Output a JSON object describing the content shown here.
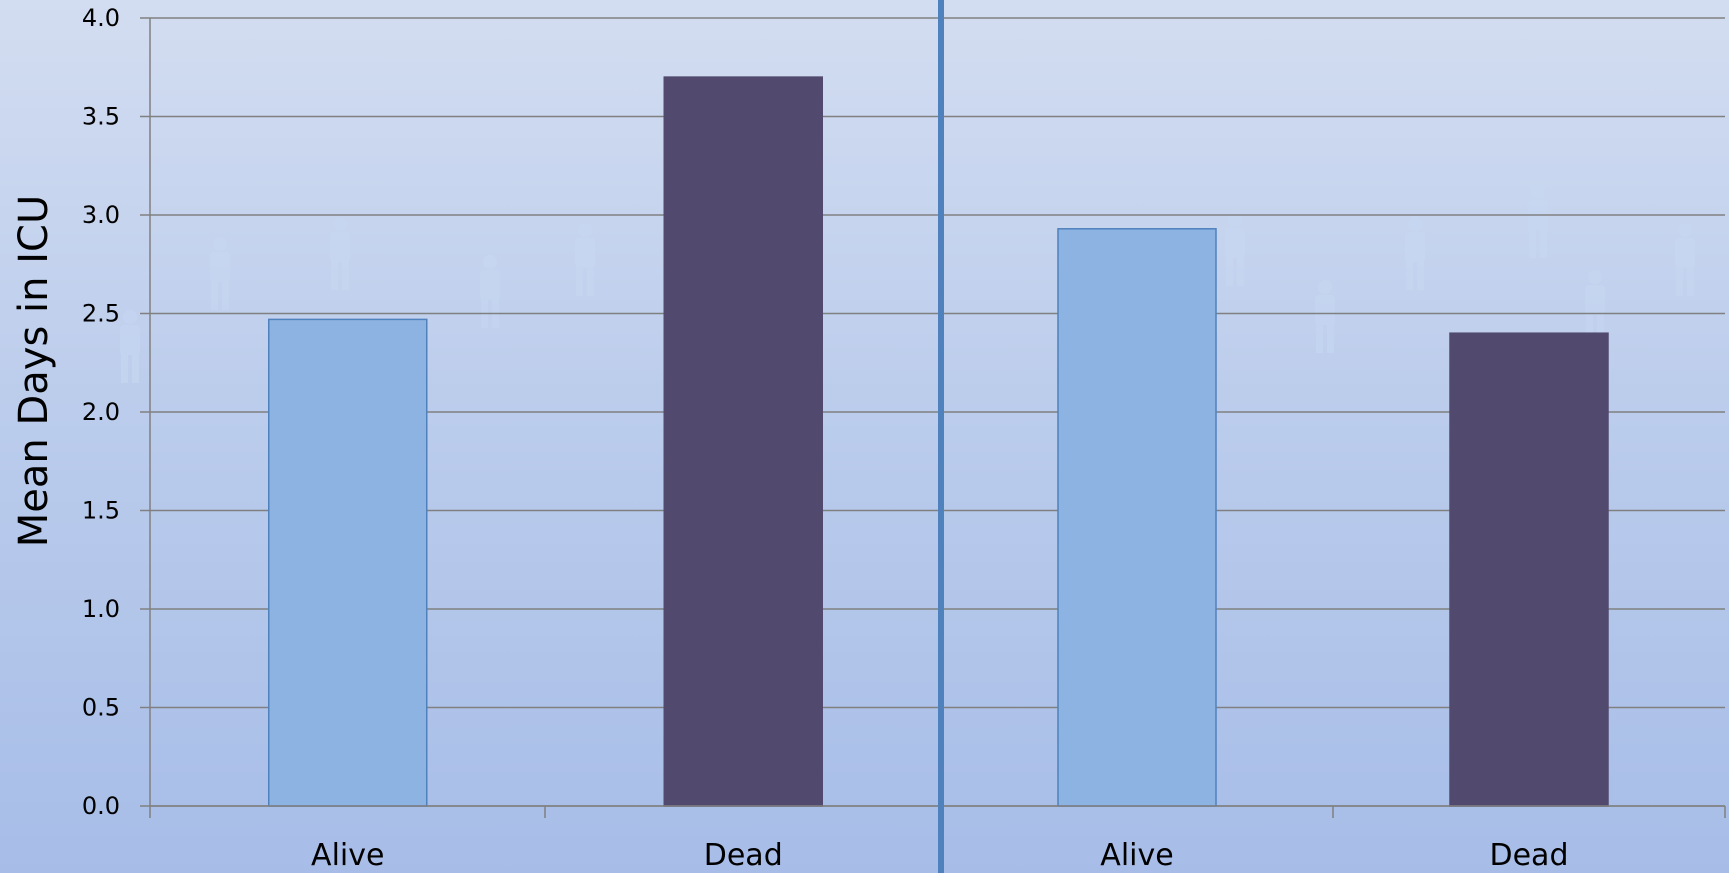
{
  "chart_data": {
    "type": "bar",
    "title": "",
    "ylabel": "Mean Days in ICU",
    "xlabel": "",
    "ylim": [
      0,
      4
    ],
    "yticks": [
      "0.0",
      "0.5",
      "1.0",
      "1.5",
      "2.0",
      "2.5",
      "3.0",
      "3.5",
      "4.0"
    ],
    "grid": true,
    "legend": "none",
    "panels": [
      {
        "categories": [
          "Alive",
          "Dead"
        ],
        "values": [
          2.47,
          3.7
        ]
      },
      {
        "categories": [
          "Alive",
          "Dead"
        ],
        "values": [
          2.93,
          2.4
        ]
      }
    ],
    "colors": {
      "Alive": "#8db3e2",
      "Dead": "#524a6e",
      "alive_border": "#4f81bd",
      "divider": "#4f81bd",
      "gridline": "#808080",
      "watermark_figure": "#c8d9f3"
    }
  }
}
